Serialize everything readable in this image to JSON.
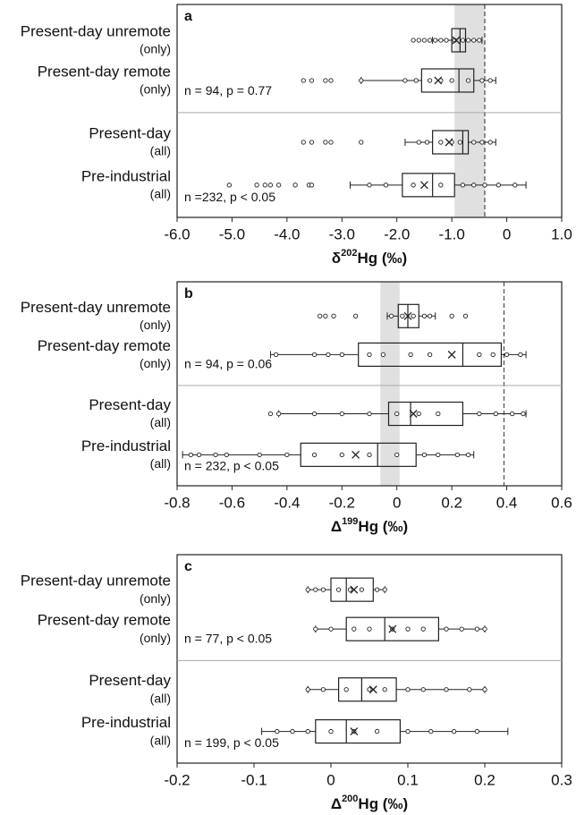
{
  "chart_data": [
    {
      "type": "box",
      "panel": "a",
      "categories": [
        "Present-day unremote",
        "Present-day remote",
        "Present-day",
        "Pre-industrial"
      ],
      "category_notes": [
        "(only)",
        "(only)",
        "(all)",
        "(all)"
      ],
      "boxes": [
        {
          "min": -1.35,
          "q1": -1.0,
          "median": -0.85,
          "q3": -0.75,
          "max": -0.45,
          "mean": -0.92,
          "points": [
            -1.7,
            -1.6,
            -1.5,
            -1.4,
            -1.3,
            -1.2,
            -1.1,
            -0.95,
            -0.8,
            -0.7,
            -0.6,
            -0.5
          ]
        },
        {
          "min": -2.65,
          "q1": -1.55,
          "median": -0.87,
          "q3": -0.6,
          "max": -0.2,
          "mean": -1.25,
          "points": [
            -3.7,
            -3.55,
            -3.3,
            -3.2,
            -2.65,
            -1.85,
            -1.65,
            -1.4,
            -1.2,
            -1.0,
            -0.7,
            -0.45,
            -0.3
          ]
        },
        {
          "min": -1.85,
          "q1": -1.35,
          "median": -0.8,
          "q3": -0.7,
          "max": -0.2,
          "mean": -1.05,
          "points": [
            -3.7,
            -3.55,
            -3.3,
            -3.2,
            -2.65,
            -1.6,
            -1.45,
            -1.2,
            -1.0,
            -0.85,
            -0.6,
            -0.45,
            -0.3
          ]
        },
        {
          "min": -2.85,
          "q1": -1.9,
          "median": -1.35,
          "q3": -0.95,
          "max": 0.35,
          "mean": -1.5,
          "points": [
            -5.05,
            -4.55,
            -4.4,
            -4.3,
            -4.15,
            -3.85,
            -3.6,
            -3.55,
            -2.5,
            -2.2,
            -1.7,
            -1.2,
            -0.8,
            -0.6,
            -0.4,
            -0.15,
            0.15
          ]
        }
      ],
      "annotations": [
        "n = 94, p = 0.77",
        "n =232, p < 0.05"
      ],
      "xlabel": {
        "prefix": "δ",
        "sup": "202",
        "suffix": "Hg (‰)"
      },
      "xlim": [
        -6,
        1
      ],
      "xticks": [
        {
          "value": -6,
          "label": "-6.0"
        },
        {
          "value": -5,
          "label": "-5.0"
        },
        {
          "value": -4,
          "label": "-4.0"
        },
        {
          "value": -3,
          "label": "-3.0"
        },
        {
          "value": -2,
          "label": "-2.0"
        },
        {
          "value": -1,
          "label": "-1.0"
        },
        0,
        {
          "value": 1,
          "label": "1.0"
        }
      ],
      "band": [
        -0.95,
        -0.4
      ],
      "band_color": "#e0e0e0",
      "reference_line": -0.4
    },
    {
      "type": "box",
      "panel": "b",
      "categories": [
        "Present-day unremote",
        "Present-day remote",
        "Present-day",
        "Pre-industrial"
      ],
      "category_notes": [
        "(only)",
        "(only)",
        "(all)",
        "(all)"
      ],
      "boxes": [
        {
          "min": -0.035,
          "q1": 0.005,
          "median": 0.04,
          "q3": 0.08,
          "max": 0.14,
          "mean": 0.04,
          "points": [
            -0.28,
            -0.26,
            -0.23,
            -0.15,
            -0.02,
            0.02,
            0.06,
            0.1,
            0.12,
            0.2,
            0.25
          ]
        },
        {
          "min": -0.46,
          "q1": -0.14,
          "median": 0.24,
          "q3": 0.38,
          "max": 0.47,
          "mean": 0.2,
          "points": [
            -0.44,
            -0.3,
            -0.25,
            -0.2,
            -0.1,
            -0.05,
            0.05,
            0.12,
            0.3,
            0.35,
            0.4,
            0.45
          ]
        },
        {
          "min": -0.43,
          "q1": -0.03,
          "median": 0.05,
          "q3": 0.24,
          "max": 0.47,
          "mean": 0.06,
          "points": [
            -0.46,
            -0.43,
            -0.3,
            -0.2,
            -0.1,
            0.0,
            0.08,
            0.15,
            0.3,
            0.36,
            0.42,
            0.46
          ]
        },
        {
          "min": -0.78,
          "q1": -0.35,
          "median": -0.07,
          "q3": 0.07,
          "max": 0.28,
          "mean": -0.15,
          "points": [
            -0.75,
            -0.72,
            -0.66,
            -0.62,
            -0.5,
            -0.4,
            -0.3,
            -0.2,
            -0.1,
            0.0,
            0.1,
            0.15,
            0.22,
            0.26
          ]
        }
      ],
      "annotations": [
        "n = 94, p = 0.06",
        "n = 232, p < 0.05"
      ],
      "xlabel": {
        "prefix": "Δ",
        "sup": "199",
        "suffix": "Hg (‰)"
      },
      "xlim": [
        -0.8,
        0.6
      ],
      "xticks": [
        -0.8,
        -0.6,
        -0.4,
        -0.2,
        0,
        0.2,
        0.4,
        0.6
      ],
      "band": [
        -0.06,
        0.01
      ],
      "band_color": "#e0e0e0",
      "reference_line": 0.39
    },
    {
      "type": "box",
      "panel": "c",
      "categories": [
        "Present-day unremote",
        "Present-day remote",
        "Present-day",
        "Pre-industrial"
      ],
      "category_notes": [
        "(only)",
        "(only)",
        "(all)",
        "(all)"
      ],
      "boxes": [
        {
          "min": -0.03,
          "q1": 0.0,
          "median": 0.02,
          "q3": 0.055,
          "max": 0.07,
          "mean": 0.03,
          "points": [
            -0.03,
            -0.02,
            -0.01,
            0.01,
            0.025,
            0.04,
            0.06,
            0.07
          ]
        },
        {
          "min": -0.02,
          "q1": 0.02,
          "median": 0.07,
          "q3": 0.14,
          "max": 0.2,
          "mean": 0.08,
          "points": [
            -0.02,
            0.0,
            0.03,
            0.05,
            0.08,
            0.1,
            0.12,
            0.15,
            0.17,
            0.19,
            0.2
          ]
        },
        {
          "min": -0.03,
          "q1": 0.01,
          "median": 0.04,
          "q3": 0.085,
          "max": 0.2,
          "mean": 0.055,
          "points": [
            -0.03,
            -0.01,
            0.02,
            0.05,
            0.07,
            0.1,
            0.12,
            0.15,
            0.18,
            0.2
          ]
        },
        {
          "min": -0.09,
          "q1": -0.02,
          "median": 0.02,
          "q3": 0.09,
          "max": 0.23,
          "mean": 0.03,
          "points": [
            -0.07,
            -0.05,
            -0.03,
            0.0,
            0.03,
            0.06,
            0.1,
            0.13,
            0.16,
            0.19
          ]
        }
      ],
      "annotations": [
        "n = 77, p < 0.05",
        "n = 199, p < 0.05"
      ],
      "xlabel": {
        "prefix": "Δ",
        "sup": "200",
        "suffix": "Hg (‰)"
      },
      "xlim": [
        -0.2,
        0.3
      ],
      "xticks": [
        -0.2,
        -0.1,
        0,
        0.1,
        0.2,
        0.3
      ]
    }
  ]
}
